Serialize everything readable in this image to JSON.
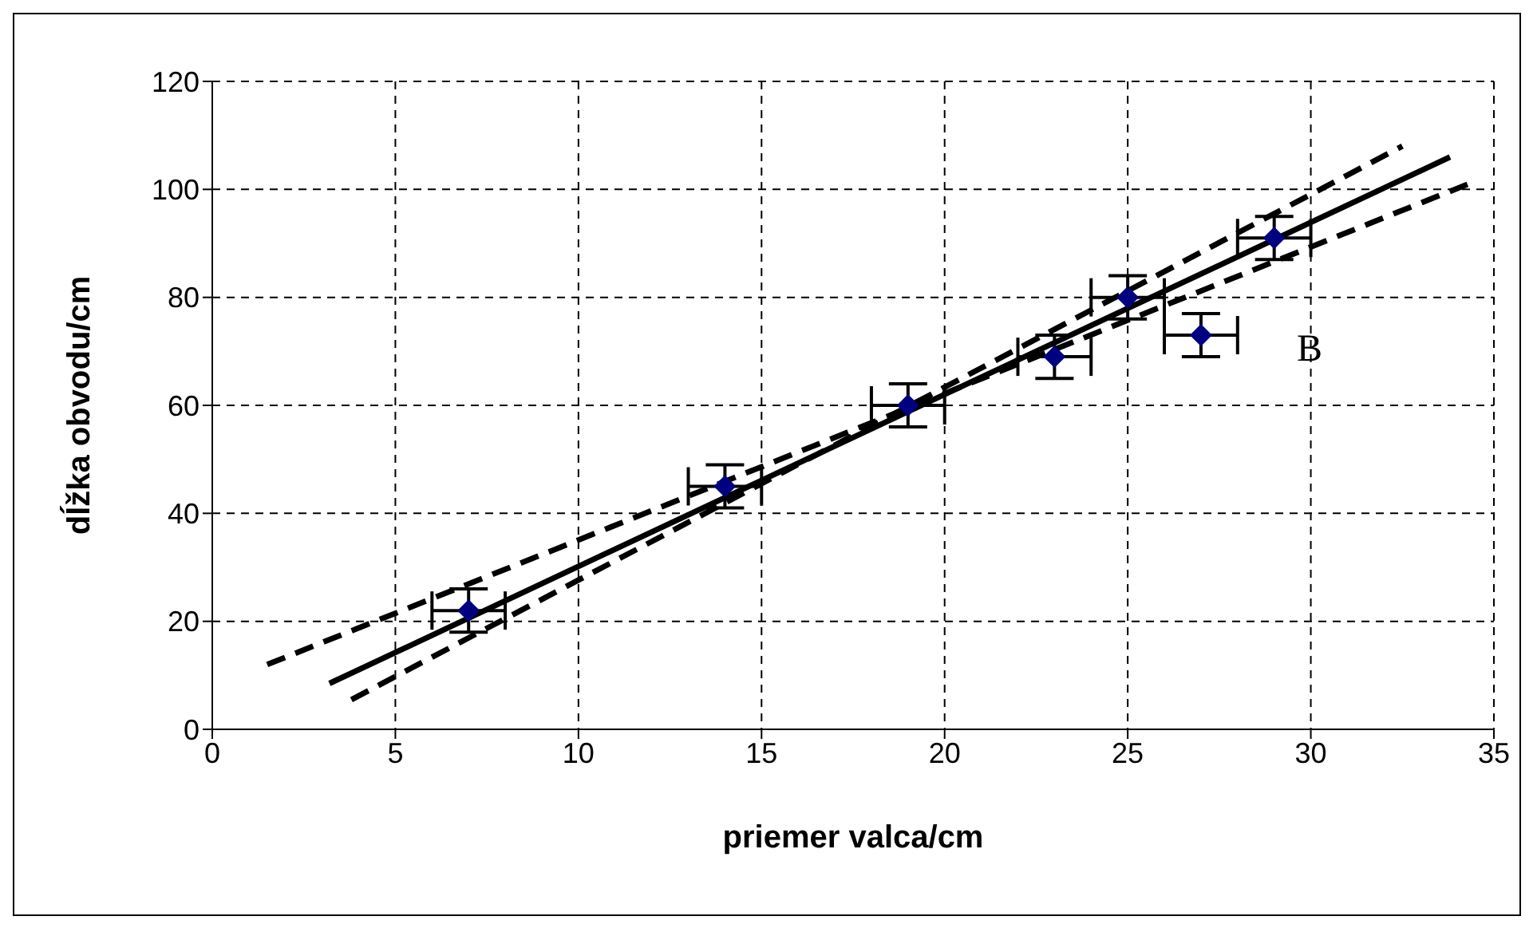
{
  "chart_data": {
    "type": "scatter",
    "xlabel": "priemer valca/cm",
    "ylabel": "dĺžka obvodu/cm",
    "xlim": [
      0,
      35
    ],
    "xticks": [
      0,
      5,
      10,
      15,
      20,
      25,
      30,
      35
    ],
    "ylim": [
      0,
      120
    ],
    "yticks": [
      0,
      20,
      40,
      60,
      80,
      100,
      120
    ],
    "grid": true,
    "legend": false,
    "series": [
      {
        "color": "#000080",
        "marker": "diamond",
        "x": [
          7,
          14,
          19,
          23,
          25,
          27,
          29
        ],
        "values": [
          22,
          45,
          60,
          69,
          80,
          73,
          91
        ],
        "errors": [
          4,
          4,
          4,
          4,
          4,
          4,
          4
        ],
        "xerrors": [
          1,
          1,
          1,
          1,
          1,
          1,
          1
        ]
      },
      {
        "type": "line",
        "color": "#000000",
        "line_style": "solid",
        "marker": "none",
        "x": [
          3.2,
          33.8
        ],
        "values": [
          8.5,
          106
        ]
      },
      {
        "type": "line",
        "color": "#000000",
        "line_style": "dashed",
        "marker": "none",
        "x": [
          1.5,
          34.3
        ],
        "values": [
          12,
          101
        ]
      },
      {
        "type": "line",
        "color": "#000000",
        "line_style": "dashed",
        "marker": "none",
        "x": [
          3.8,
          32.5
        ],
        "values": [
          5.5,
          108
        ]
      }
    ],
    "annotations": [
      {
        "text": "B",
        "x": 27,
        "y": 73
      }
    ]
  }
}
